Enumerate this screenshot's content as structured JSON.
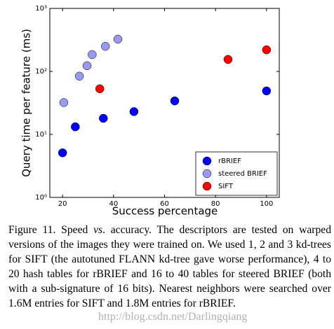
{
  "chart_data": {
    "type": "scatter",
    "xlabel": "Success percentage",
    "ylabel": "Query time per feature (ms)",
    "xlim": [
      15,
      105
    ],
    "xticks": [
      20,
      40,
      60,
      80,
      100
    ],
    "ylim": [
      1,
      1000
    ],
    "log_y": true,
    "yticks": [
      {
        "value": 1,
        "label": "10⁰"
      },
      {
        "value": 10,
        "label": "10¹"
      },
      {
        "value": 100,
        "label": "10²"
      },
      {
        "value": 1000,
        "label": "10³"
      }
    ],
    "legend": "lower right",
    "series": [
      {
        "name": "rBRIEF",
        "color": "#0000ff",
        "x": [
          20,
          25,
          36,
          48,
          64,
          100
        ],
        "values": [
          5.1,
          13.2,
          18,
          23,
          34,
          49
        ]
      },
      {
        "name": "steered BRIEF",
        "color": "#9999ee",
        "x": [
          20.5,
          26.6,
          29.6,
          31.6,
          36.8,
          41.7
        ],
        "values": [
          32,
          84,
          123,
          185,
          250,
          325
        ]
      },
      {
        "name": "SIFT",
        "color": "#ff0000",
        "x": [
          34.6,
          84.9,
          100
        ],
        "values": [
          53,
          155,
          220
        ]
      }
    ]
  },
  "caption": [
    "Figure 11. Speed ",
    "vs",
    ". accuracy.  The descriptors are tested on warped versions of the images they were trained on. We used 1, 2 and 3 kd-trees for SIFT (the autotuned FLANN kd-tree gave worse performance), 4 to 20 hash tables for rBRIEF and 16 to 40 tables for steered BRIEF (both with a sub-signature of 16 bits). Nearest neighbors were searched over 1.6M entries for SIFT and 1.8M entries for rBRIEF."
  ],
  "watermark": "http://blog.csdn.net/Darlingqiang"
}
